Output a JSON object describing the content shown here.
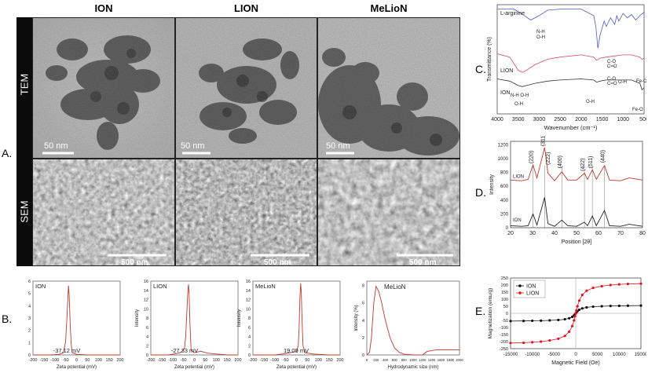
{
  "panels": {
    "A": "A.",
    "B": "B.",
    "C": "C.",
    "D": "D.",
    "E": "E."
  },
  "columns": [
    "ION",
    "LION",
    "MeLioN"
  ],
  "rows": [
    "TEM",
    "SEM"
  ],
  "scale_bars": {
    "tem": "50  nm",
    "sem": "500 nm"
  },
  "zeta": [
    {
      "label": "ION",
      "value_label": "-37.12 mV",
      "ylabel": "",
      "xlabel": "Zeta potential (mV)",
      "yticks": [
        "6",
        "5",
        "4",
        "3",
        "2",
        "1",
        "0"
      ]
    },
    {
      "label": "LION",
      "value_label": "-27.33 mV",
      "ylabel": "Intensity",
      "xlabel": "Zeta potential (mV)",
      "yticks": [
        "16",
        "14",
        "12",
        "10",
        "8",
        "6",
        "4",
        "2",
        "0"
      ]
    },
    {
      "label": "MeLioN",
      "value_label": "19.09 mV",
      "ylabel": "Intensity",
      "xlabel": "Zeta potential (mV)",
      "yticks": [
        "16",
        "14",
        "12",
        "10",
        "8",
        "6",
        "4",
        "2",
        "0"
      ]
    }
  ],
  "zeta_xticks": [
    "-200",
    "-150",
    "-100",
    "-50",
    "0",
    "50",
    "100",
    "150",
    "200"
  ],
  "dls": {
    "label": "MeLioN",
    "ylabel": "Intensity (%)",
    "xlabel": "Hydrodynamic size (nm)",
    "yticks": [
      "8",
      "6",
      "4",
      "2",
      "0"
    ],
    "xticks": [
      "0",
      "200",
      "400",
      "600",
      "800",
      "1000",
      "1200",
      "1400",
      "1600",
      "1800",
      "2000"
    ]
  },
  "ftir": {
    "ylabel": "Transmittance (%)",
    "xlabel": "Wavenumber (cm⁻¹)",
    "xticks": [
      "4000",
      "3500",
      "3000",
      "2500",
      "2000",
      "1500",
      "1000",
      "500"
    ],
    "series_labels": [
      "L-arginine",
      "LION",
      "ION"
    ],
    "annotations": [
      "N-H",
      "O-H",
      "C-O",
      "C=O",
      "C-O",
      "C=O",
      "O-H",
      "Fe-O",
      "N-H O-H",
      "O-H",
      "O-H",
      "Fe-O"
    ]
  },
  "xrd": {
    "ylabel": "Intensity",
    "xlabel": "Position [2θ]",
    "xticks": [
      "20",
      "30",
      "40",
      "50",
      "60",
      "70",
      "80"
    ],
    "yticks": [
      "0",
      "200",
      "400",
      "600",
      "800",
      "1000",
      "1200"
    ],
    "series_labels": [
      "LION",
      "ION"
    ],
    "peaks": [
      "(220)",
      "(311)",
      "(222)",
      "(400)",
      "(422)",
      "(511)",
      "(440)"
    ]
  },
  "mag": {
    "ylabel": "Magnetization (emu/g)",
    "xlabel": "Magnetic Field (Oe)",
    "xticks": [
      "-15000",
      "-10000",
      "-5000",
      "0",
      "5000",
      "10000",
      "15000"
    ],
    "yticks": [
      "250",
      "200",
      "150",
      "100",
      "50",
      "0",
      "-50",
      "-100",
      "-150",
      "-200",
      "-250"
    ],
    "legend": [
      "ION",
      "LION"
    ]
  },
  "chart_data": [
    {
      "type": "line",
      "title": "",
      "series": [
        {
          "name": "ION",
          "x": [
            -200,
            -120,
            -80,
            -60,
            -50,
            -45,
            -40,
            -37,
            -34,
            -30,
            -25,
            -20,
            0,
            50,
            100,
            150,
            200
          ],
          "y": [
            0,
            0,
            0.05,
            0.2,
            1.2,
            3,
            5,
            6.1,
            5.2,
            3,
            1,
            0.2,
            0.05,
            0,
            0,
            0,
            0
          ]
        }
      ],
      "xlabel": "Zeta potential (mV)",
      "xlim": [
        -200,
        200
      ],
      "ylim": [
        0,
        6.5
      ]
    },
    {
      "type": "line",
      "title": "",
      "series": [
        {
          "name": "LION",
          "x": [
            -200,
            -120,
            -80,
            -60,
            -45,
            -40,
            -35,
            -30,
            -27,
            -24,
            -20,
            -15,
            0,
            30,
            60,
            100,
            150,
            200
          ],
          "y": [
            0,
            0,
            0.3,
            0.6,
            1.5,
            4,
            9,
            14,
            15.3,
            13,
            6,
            1,
            0.5,
            0.8,
            0.4,
            0.2,
            0,
            0
          ]
        }
      ],
      "xlabel": "Zeta potential (mV)",
      "ylabel": "Intensity",
      "xlim": [
        -200,
        200
      ],
      "ylim": [
        0,
        16
      ]
    },
    {
      "type": "line",
      "title": "",
      "series": [
        {
          "name": "MeLioN",
          "x": [
            -200,
            -100,
            -50,
            0,
            8,
            12,
            16,
            19,
            22,
            26,
            30,
            40,
            80,
            150,
            200
          ],
          "y": [
            0,
            0,
            0.3,
            0.8,
            2,
            6,
            13,
            16,
            14,
            7,
            2,
            0.5,
            0.2,
            0,
            0
          ]
        }
      ],
      "xlabel": "Zeta potential (mV)",
      "ylabel": "Intensity",
      "xlim": [
        -200,
        200
      ],
      "ylim": [
        0,
        16.5
      ]
    },
    {
      "type": "line",
      "title": "",
      "series": [
        {
          "name": "MeLioN",
          "x": [
            0,
            60,
            100,
            150,
            200,
            260,
            320,
            400,
            500,
            600,
            700,
            800,
            1000,
            1200,
            1300,
            1500,
            1800,
            2000
          ],
          "y": [
            0,
            0.3,
            2,
            6,
            7.9,
            7.3,
            6,
            4,
            2,
            0.8,
            0.3,
            0.1,
            0,
            0,
            0.4,
            0.6,
            0.6,
            0.6
          ]
        }
      ],
      "xlabel": "Hydrodynamic size (nm)",
      "ylabel": "Intensity (%)",
      "xlim": [
        0,
        2000
      ],
      "ylim": [
        0,
        8.5
      ]
    },
    {
      "type": "line",
      "title": "",
      "series": [
        {
          "name": "L-arginine",
          "x": [
            4000,
            3600,
            3350,
            3200,
            3000,
            2800,
            2500,
            2000,
            1700,
            1650,
            1600,
            1550,
            1450,
            1400,
            1300,
            1200,
            1150,
            1100,
            1000,
            900,
            800,
            700,
            600,
            500
          ],
          "y": [
            96,
            96,
            90,
            86,
            90,
            95,
            96,
            96,
            90,
            80,
            60,
            72,
            85,
            80,
            88,
            82,
            90,
            85,
            92,
            88,
            91,
            86,
            90,
            93
          ]
        },
        {
          "name": "LION",
          "x": [
            4000,
            3700,
            3500,
            3400,
            3300,
            3100,
            2800,
            2500,
            2000,
            1700,
            1630,
            1550,
            1400,
            1200,
            1000,
            800,
            600,
            550,
            500
          ],
          "y": [
            55,
            52,
            40,
            38,
            40,
            45,
            50,
            52,
            54,
            52,
            49,
            51,
            52,
            53,
            54,
            54,
            52,
            50,
            51
          ]
        },
        {
          "name": "ION",
          "x": [
            4000,
            3700,
            3500,
            3400,
            3300,
            3100,
            2800,
            2500,
            2000,
            1700,
            1630,
            1550,
            1400,
            1200,
            1000,
            800,
            600,
            550,
            500
          ],
          "y": [
            32,
            30,
            26,
            25,
            26,
            28,
            30,
            31,
            32,
            31,
            29,
            30,
            31,
            31,
            31,
            31,
            28,
            22,
            24
          ]
        }
      ],
      "xlabel": "Wavenumber (cm⁻¹)",
      "ylabel": "Transmittance (%)",
      "xlim": [
        4000,
        500
      ]
    },
    {
      "type": "line",
      "title": "",
      "series": [
        {
          "name": "LION",
          "x": [
            20,
            25,
            28,
            30.2,
            32,
            35.5,
            37,
            40,
            43.3,
            46,
            50,
            53.6,
            55,
            57.2,
            59,
            62.7,
            65,
            70,
            74,
            80
          ],
          "y": [
            690,
            680,
            700,
            910,
            720,
            1160,
            790,
            680,
            810,
            690,
            690,
            790,
            700,
            840,
            700,
            900,
            690,
            680,
            720,
            690
          ]
        },
        {
          "name": "ION",
          "x": [
            20,
            25,
            28,
            30.2,
            32,
            35.5,
            37,
            40,
            43.3,
            46,
            50,
            53.6,
            55,
            57.2,
            59,
            62.7,
            65,
            70,
            74,
            80
          ],
          "y": [
            30,
            20,
            30,
            200,
            40,
            440,
            60,
            20,
            110,
            30,
            20,
            80,
            30,
            170,
            30,
            250,
            30,
            20,
            50,
            20
          ]
        }
      ],
      "xlabel": "Position [2θ]",
      "ylabel": "Intensity",
      "xlim": [
        20,
        80
      ],
      "ylim": [
        0,
        1250
      ],
      "peaks": [
        "(220)",
        "(311)",
        "(222)",
        "(400)",
        "(422)",
        "(511)",
        "(440)"
      ]
    },
    {
      "type": "scatter",
      "title": "",
      "series": [
        {
          "name": "ION",
          "x": [
            -15000,
            -12000,
            -10000,
            -8000,
            -6000,
            -4000,
            -2500,
            -1500,
            -800,
            -400,
            -150,
            0,
            150,
            400,
            800,
            1500,
            2500,
            4000,
            6000,
            8000,
            10000,
            12000,
            15000
          ],
          "y": [
            -55,
            -54,
            -53,
            -52,
            -50,
            -47,
            -42,
            -35,
            -25,
            -15,
            -6,
            0,
            6,
            15,
            25,
            35,
            42,
            47,
            50,
            52,
            53,
            54,
            55
          ]
        },
        {
          "name": "LION",
          "x": [
            -15000,
            -12000,
            -10000,
            -8000,
            -6000,
            -4000,
            -2500,
            -1500,
            -800,
            -400,
            -150,
            0,
            150,
            400,
            800,
            1500,
            2500,
            4000,
            6000,
            8000,
            10000,
            12000,
            15000
          ],
          "y": [
            -210,
            -208,
            -205,
            -200,
            -192,
            -180,
            -160,
            -130,
            -90,
            -50,
            -20,
            0,
            20,
            50,
            90,
            130,
            160,
            180,
            192,
            200,
            205,
            208,
            210
          ]
        }
      ],
      "xlabel": "Magnetic Field (Oe)",
      "ylabel": "Magnetization (emu/g)",
      "xlim": [
        -15000,
        15000
      ],
      "ylim": [
        -250,
        250
      ],
      "legend_position": "top-left"
    }
  ]
}
